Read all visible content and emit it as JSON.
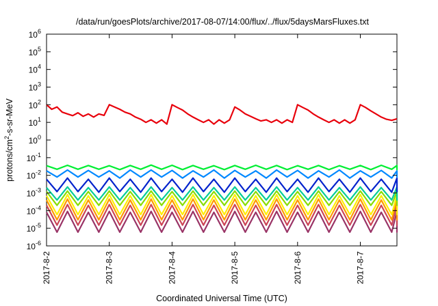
{
  "chart_data": {
    "type": "line",
    "title": "/data/run/goesPlots/archive/2017-08-07/14:00/flux/../flux/5daysMarsFluxes.txt",
    "xlabel": "Coordinated Universal Time (UTC)",
    "ylabel": "protons/cm2-s-sr-MeV",
    "ylabel_parts": {
      "base": "protons/cm",
      "sup": "2",
      "rest": "-s-sr-MeV"
    },
    "y_scale": "log",
    "ylim": [
      1e-06,
      1000000.0
    ],
    "y_ticks": [
      {
        "base": "10",
        "exp": "-6"
      },
      {
        "base": "10",
        "exp": "-5"
      },
      {
        "base": "10",
        "exp": "-4"
      },
      {
        "base": "10",
        "exp": "-3"
      },
      {
        "base": "10",
        "exp": "-2"
      },
      {
        "base": "10",
        "exp": "-1"
      },
      {
        "base": "10",
        "exp": "0"
      },
      {
        "base": "10",
        "exp": "1"
      },
      {
        "base": "10",
        "exp": "2"
      },
      {
        "base": "10",
        "exp": "3"
      },
      {
        "base": "10",
        "exp": "4"
      },
      {
        "base": "10",
        "exp": "5"
      },
      {
        "base": "10",
        "exp": "6"
      }
    ],
    "x_ticks": [
      "2017-8-2",
      "2017-8-3",
      "2017-8-4",
      "2017-8-5",
      "2017-8-6",
      "2017-8-7"
    ],
    "xlim": [
      "2017-08-02 00:00",
      "2017-08-07 14:00"
    ],
    "grid": false,
    "legend": "none",
    "series": [
      {
        "color": "#e8000b",
        "x": [
          "2017-08-02 00:00",
          "2017-08-02 02:00",
          "2017-08-02 04:00",
          "2017-08-02 06:00",
          "2017-08-02 08:00",
          "2017-08-02 10:00",
          "2017-08-02 12:00",
          "2017-08-02 14:00",
          "2017-08-02 16:00",
          "2017-08-02 18:00",
          "2017-08-02 20:00",
          "2017-08-02 22:00",
          "2017-08-03 00:00",
          "2017-08-03 02:00",
          "2017-08-03 04:00",
          "2017-08-03 06:00",
          "2017-08-03 08:00",
          "2017-08-03 10:00",
          "2017-08-03 12:00",
          "2017-08-03 14:00",
          "2017-08-03 16:00",
          "2017-08-03 18:00",
          "2017-08-03 20:00",
          "2017-08-03 22:00",
          "2017-08-04 00:00",
          "2017-08-04 02:00",
          "2017-08-04 04:00",
          "2017-08-04 06:00",
          "2017-08-04 08:00",
          "2017-08-04 10:00",
          "2017-08-04 12:00",
          "2017-08-04 14:00",
          "2017-08-04 16:00",
          "2017-08-04 18:00",
          "2017-08-04 20:00",
          "2017-08-04 22:00",
          "2017-08-05 00:00",
          "2017-08-05 02:00",
          "2017-08-05 04:00",
          "2017-08-05 06:00",
          "2017-08-05 08:00",
          "2017-08-05 10:00",
          "2017-08-05 12:00",
          "2017-08-05 14:00",
          "2017-08-05 16:00",
          "2017-08-05 18:00",
          "2017-08-05 20:00",
          "2017-08-05 22:00",
          "2017-08-06 00:00",
          "2017-08-06 02:00",
          "2017-08-06 04:00",
          "2017-08-06 06:00",
          "2017-08-06 08:00",
          "2017-08-06 10:00",
          "2017-08-06 12:00",
          "2017-08-06 14:00",
          "2017-08-06 16:00",
          "2017-08-06 18:00",
          "2017-08-06 20:00",
          "2017-08-06 22:00",
          "2017-08-07 00:00",
          "2017-08-07 02:00",
          "2017-08-07 04:00",
          "2017-08-07 06:00",
          "2017-08-07 08:00",
          "2017-08-07 10:00",
          "2017-08-07 12:00",
          "2017-08-07 14:00"
        ],
        "values": [
          100,
          55,
          75,
          38,
          30,
          24,
          35,
          22,
          30,
          20,
          30,
          25,
          100,
          75,
          55,
          38,
          30,
          20,
          15,
          10,
          14,
          9,
          14,
          8,
          100,
          70,
          50,
          30,
          20,
          14,
          10,
          14,
          8,
          14,
          9,
          14,
          75,
          50,
          30,
          22,
          16,
          12,
          14,
          10,
          14,
          9,
          14,
          10,
          100,
          70,
          50,
          30,
          20,
          14,
          10,
          14,
          9,
          14,
          9,
          14,
          100,
          70,
          45,
          30,
          20,
          15,
          13,
          16
        ]
      },
      {
        "color": "#00ee33",
        "x_start": "2017-08-02 00:00",
        "x_step_hours": 4,
        "values": [
          0.035,
          0.022,
          0.037,
          0.022,
          0.036,
          0.022,
          0.035,
          0.021,
          0.036,
          0.022,
          0.038,
          0.022,
          0.037,
          0.021,
          0.036,
          0.022,
          0.035,
          0.021,
          0.036,
          0.022,
          0.037,
          0.022,
          0.036,
          0.021,
          0.035,
          0.022,
          0.036,
          0.021,
          0.035,
          0.022,
          0.036,
          0.021,
          0.037,
          0.022,
          0.036,
          0.021,
          0.035
        ]
      },
      {
        "color": "#0088ff",
        "x_start": "2017-08-02 00:00",
        "x_step_hours": 4,
        "values": [
          0.018,
          0.008,
          0.02,
          0.008,
          0.019,
          0.008,
          0.018,
          0.007,
          0.02,
          0.008,
          0.02,
          0.008,
          0.019,
          0.007,
          0.018,
          0.008,
          0.02,
          0.007,
          0.019,
          0.008,
          0.018,
          0.007,
          0.02,
          0.008,
          0.019,
          0.007,
          0.018,
          0.008,
          0.02,
          0.007,
          0.018,
          0.008,
          0.019,
          0.007,
          0.018,
          0.008,
          0.017
        ]
      },
      {
        "color": "#0022cc",
        "x_start": "2017-08-02 00:00",
        "x_step_hours": 4,
        "values": [
          0.006,
          0.0012,
          0.007,
          0.0012,
          0.006,
          0.0011,
          0.007,
          0.0012,
          0.006,
          0.0011,
          0.007,
          0.0012,
          0.006,
          0.0011,
          0.007,
          0.0012,
          0.006,
          0.0011,
          0.007,
          0.0012,
          0.006,
          0.0011,
          0.007,
          0.0012,
          0.006,
          0.0011,
          0.007,
          0.0012,
          0.006,
          0.0011,
          0.007,
          0.0012,
          0.006,
          0.0011,
          0.007,
          0.0012,
          0.006
        ]
      },
      {
        "color": "#00cc99",
        "x_start": "2017-08-02 00:00",
        "x_step_hours": 4,
        "values": [
          0.002,
          0.0004,
          0.0022,
          0.0004,
          0.002,
          0.0004,
          0.0022,
          0.0004,
          0.002,
          0.0004,
          0.0022,
          0.0004,
          0.002,
          0.0004,
          0.0022,
          0.0004,
          0.002,
          0.0004,
          0.0022,
          0.0004,
          0.002,
          0.0004,
          0.0022,
          0.0004,
          0.002,
          0.0004,
          0.0022,
          0.0004,
          0.002,
          0.0004,
          0.0022,
          0.0004,
          0.002,
          0.0004,
          0.0022,
          0.0004,
          0.002
        ]
      },
      {
        "color": "#88dd00",
        "x_start": "2017-08-02 00:00",
        "x_step_hours": 4,
        "values": [
          0.0012,
          0.0002,
          0.0013,
          0.0002,
          0.0012,
          0.0002,
          0.0013,
          0.0002,
          0.0012,
          0.0002,
          0.0013,
          0.0002,
          0.0012,
          0.0002,
          0.0013,
          0.0002,
          0.0012,
          0.0002,
          0.0013,
          0.0002,
          0.0012,
          0.0002,
          0.0013,
          0.0002,
          0.0012,
          0.0002,
          0.0013,
          0.0002,
          0.0012,
          0.0002,
          0.0013,
          0.0002,
          0.0012,
          0.0002,
          0.0013,
          0.0002,
          0.0012
        ]
      },
      {
        "color": "#ffee00",
        "x_start": "2017-08-02 00:00",
        "x_step_hours": 4,
        "values": [
          0.0007,
          6e-05,
          0.0008,
          6e-05,
          0.0007,
          6e-05,
          0.0008,
          6e-05,
          0.0007,
          6e-05,
          0.0008,
          6e-05,
          0.0007,
          6e-05,
          0.0008,
          6e-05,
          0.0007,
          6e-05,
          0.0008,
          6e-05,
          0.0007,
          6e-05,
          0.0008,
          6e-05,
          0.0007,
          6e-05,
          0.0008,
          6e-05,
          0.0007,
          6e-05,
          0.0008,
          6e-05,
          0.0007,
          6e-05,
          0.0008,
          6e-05,
          0.0007
        ]
      },
      {
        "color": "#ff9900",
        "x_start": "2017-08-02 00:00",
        "x_step_hours": 4,
        "values": [
          0.0004,
          3e-05,
          0.00045,
          3e-05,
          0.0004,
          3e-05,
          0.00045,
          3e-05,
          0.0004,
          3e-05,
          0.00045,
          3e-05,
          0.0004,
          3e-05,
          0.00045,
          3e-05,
          0.0004,
          3e-05,
          0.00045,
          3e-05,
          0.0004,
          3e-05,
          0.00045,
          3e-05,
          0.0004,
          3e-05,
          0.00045,
          3e-05,
          0.0004,
          3e-05,
          0.00045,
          3e-05,
          0.0004,
          3e-05,
          0.00045,
          3e-05,
          0.0004
        ]
      },
      {
        "color": "#cc4455",
        "x_start": "2017-08-02 00:00",
        "x_step_hours": 4,
        "values": [
          0.0002,
          1.5e-05,
          0.00022,
          1.5e-05,
          0.0002,
          1.5e-05,
          0.00022,
          1.5e-05,
          0.0002,
          1.5e-05,
          0.00022,
          1.5e-05,
          0.0002,
          1.5e-05,
          0.00022,
          1.5e-05,
          0.0002,
          1.5e-05,
          0.00022,
          1.5e-05,
          0.0002,
          1.5e-05,
          0.00022,
          1.5e-05,
          0.0002,
          1.5e-05,
          0.00022,
          1.5e-05,
          0.0002,
          1.5e-05,
          0.00022,
          1.5e-05,
          0.0002,
          1.5e-05,
          0.00022,
          1.5e-05,
          0.0002
        ]
      },
      {
        "color": "#993366",
        "x_start": "2017-08-02 00:00",
        "x_step_hours": 4,
        "values": [
          8e-05,
          6e-06,
          9e-05,
          6e-06,
          8e-05,
          6e-06,
          9e-05,
          6e-06,
          8e-05,
          6e-06,
          9e-05,
          6e-06,
          8e-05,
          6e-06,
          9e-05,
          6e-06,
          8e-05,
          6e-06,
          9e-05,
          6e-06,
          8e-05,
          6e-06,
          9e-05,
          6e-06,
          8e-05,
          6e-06,
          9e-05,
          6e-06,
          8e-05,
          6e-06,
          9e-05,
          6e-06,
          8e-05,
          6e-06,
          9e-05,
          6e-06,
          8e-05
        ]
      }
    ]
  }
}
